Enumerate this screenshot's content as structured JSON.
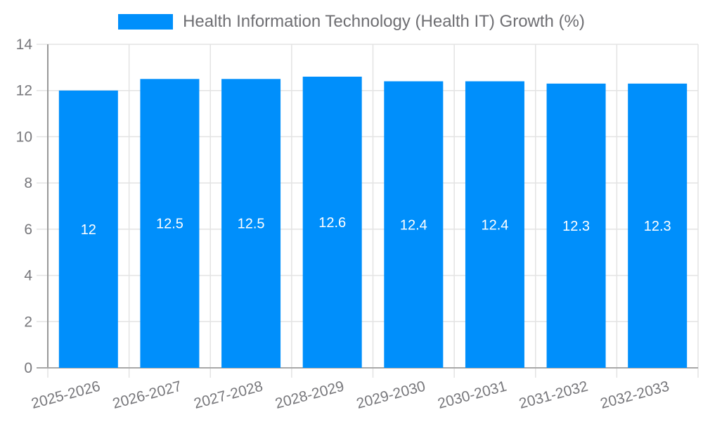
{
  "legend": {
    "series_label": "Health Information Technology (Health IT) Growth (%)"
  },
  "chart_data": {
    "type": "bar",
    "title": "",
    "xlabel": "",
    "ylabel": "",
    "categories": [
      "2025-2026",
      "2026-2027",
      "2027-2028",
      "2028-2029",
      "2029-2030",
      "2030-2031",
      "2031-2032",
      "2032-2033"
    ],
    "values": [
      12,
      12.5,
      12.5,
      12.6,
      12.4,
      12.4,
      12.3,
      12.3
    ],
    "data_labels": [
      "12",
      "12.5",
      "12.5",
      "12.6",
      "12.4",
      "12.4",
      "12.3",
      "12.3"
    ],
    "ylim": [
      0,
      14
    ],
    "yticks": [
      0,
      2,
      4,
      6,
      8,
      10,
      12,
      14
    ],
    "grid": true,
    "legend_position": "top",
    "x_label_rotation_deg": -15,
    "colors": {
      "bar": "#008FFB",
      "grid": "#e3e3e3",
      "y_axis_line": "#999999",
      "x_axis_line": "#a8a8a8",
      "axis_label": "#77777b",
      "legend_text": "#6e6e72",
      "data_label": "#ffffff",
      "background": "#ffffff"
    }
  }
}
